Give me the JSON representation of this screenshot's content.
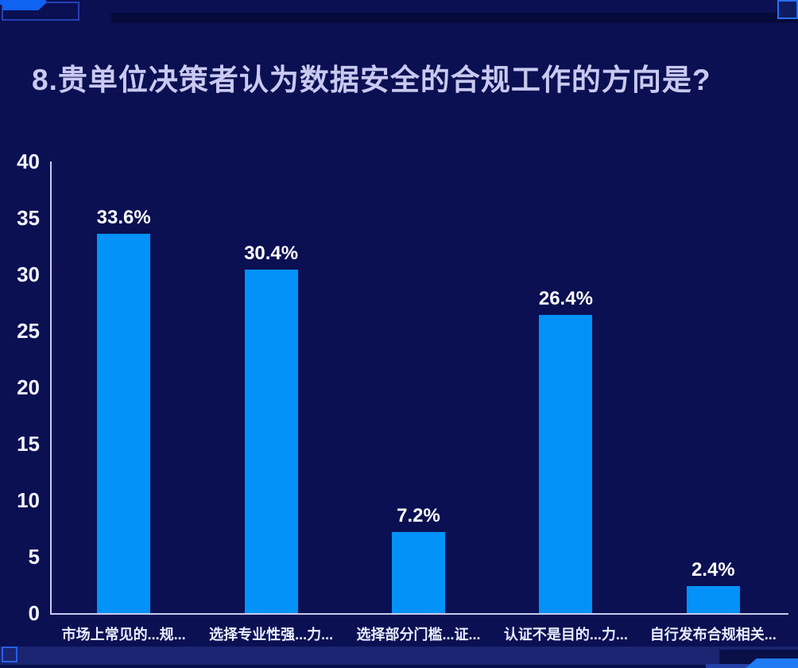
{
  "title": "8.贵单位决策者认为数据安全的合规工作的方向是?",
  "chart_data": {
    "type": "bar",
    "title": "8.贵单位决策者认为数据安全的合规工作的方向是?",
    "categories": [
      "市场上常见的...规...",
      "选择专业性强...力...",
      "选择部分门槛...证...",
      "认证不是目的...力...",
      "自行发布合规相关..."
    ],
    "values": [
      33.6,
      30.4,
      7.2,
      26.4,
      2.4
    ],
    "value_labels": [
      "33.6%",
      "30.4%",
      "7.2%",
      "26.4%",
      "2.4%"
    ],
    "xlabel": "",
    "ylabel": "",
    "ylim": [
      0,
      40
    ],
    "yticks": [
      0,
      5,
      10,
      15,
      20,
      25,
      30,
      35,
      40
    ],
    "grid": false,
    "legend_position": "none",
    "bar_color": "#0292f8",
    "value_label_color": "#ffffff",
    "tick_label_color": "#f2f4ff",
    "axis_color": "#c6cbee",
    "background_color": "#0a1052",
    "title_color": "#c9c9f0"
  }
}
